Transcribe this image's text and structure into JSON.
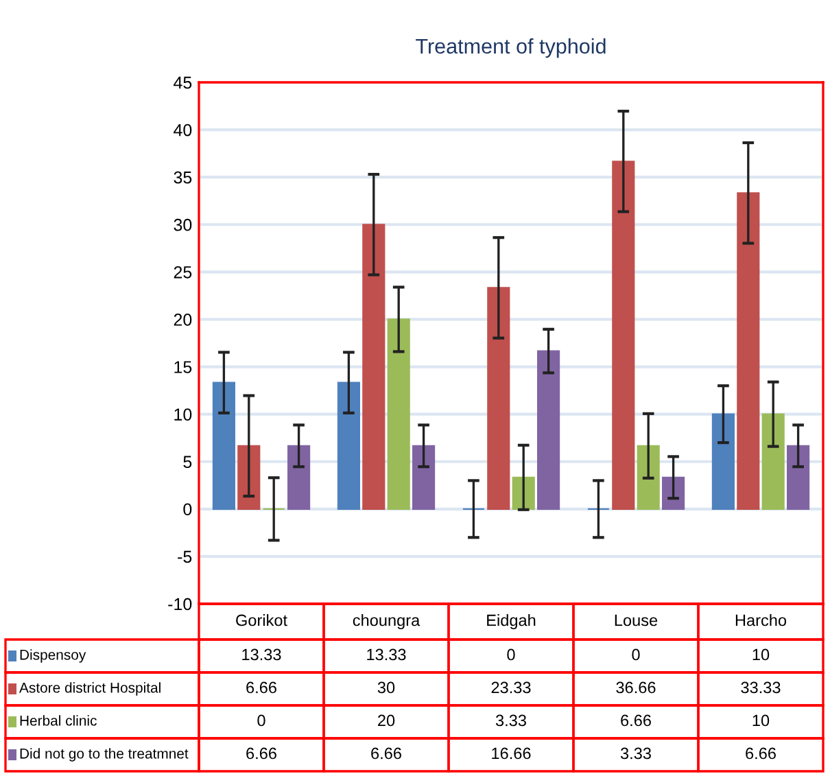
{
  "chart_data": {
    "type": "bar",
    "title": "Treatment of typhoid",
    "categories": [
      "Gorikot",
      "choungra",
      "Eidgah",
      "Louse",
      "Harcho"
    ],
    "series": [
      {
        "name": "Dispensoy",
        "color": "#4f81bd",
        "values": [
          13.33,
          13.33,
          0,
          0,
          10
        ],
        "errors": [
          3.2,
          3.2,
          3,
          3,
          3
        ]
      },
      {
        "name": "Astore district Hospital",
        "color": "#c0504d",
        "values": [
          6.66,
          30,
          23.33,
          36.66,
          33.33
        ],
        "errors": [
          5.3,
          5.3,
          5.3,
          5.3,
          5.3
        ]
      },
      {
        "name": "Herbal clinic",
        "color": "#9bbb59",
        "values": [
          0,
          20,
          3.33,
          6.66,
          10
        ],
        "errors": [
          3.3,
          3.4,
          3.4,
          3.4,
          3.4
        ]
      },
      {
        "name": "Did not go to the treatmnet",
        "color": "#8064a2",
        "values": [
          6.66,
          6.66,
          16.66,
          3.33,
          6.66
        ],
        "errors": [
          2.2,
          2.2,
          2.3,
          2.2,
          2.2
        ]
      }
    ],
    "ylim": [
      -10,
      45
    ],
    "yticks": [
      -10,
      -5,
      0,
      5,
      10,
      15,
      20,
      25,
      30,
      35,
      40,
      45
    ],
    "grid": "y",
    "legend": "bottom",
    "data_labels": true
  }
}
